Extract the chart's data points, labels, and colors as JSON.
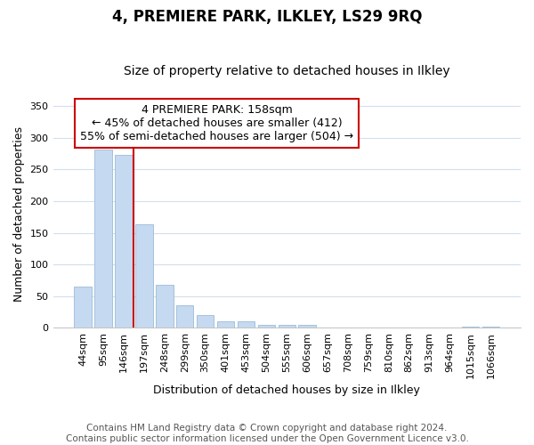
{
  "title": "4, PREMIERE PARK, ILKLEY, LS29 9RQ",
  "subtitle": "Size of property relative to detached houses in Ilkley",
  "xlabel": "Distribution of detached houses by size in Ilkley",
  "ylabel": "Number of detached properties",
  "footnote": "Contains HM Land Registry data © Crown copyright and database right 2024.\nContains public sector information licensed under the Open Government Licence v3.0.",
  "annotation_line1": "4 PREMIERE PARK: 158sqm",
  "annotation_line2": "← 45% of detached houses are smaller (412)",
  "annotation_line3": "55% of semi-detached houses are larger (504) →",
  "categories": [
    "44sqm",
    "95sqm",
    "146sqm",
    "197sqm",
    "248sqm",
    "299sqm",
    "350sqm",
    "401sqm",
    "453sqm",
    "504sqm",
    "555sqm",
    "606sqm",
    "657sqm",
    "708sqm",
    "759sqm",
    "810sqm",
    "862sqm",
    "913sqm",
    "964sqm",
    "1015sqm",
    "1066sqm"
  ],
  "values": [
    65,
    281,
    273,
    163,
    68,
    35,
    20,
    10,
    10,
    5,
    5,
    5,
    0,
    0,
    0,
    0,
    0,
    0,
    0,
    2,
    2
  ],
  "bar_color": "#c5d9f0",
  "bar_edge_color": "#9bbcd8",
  "vline_x": 2.5,
  "vline_color": "#cc0000",
  "box_color": "#cc0000",
  "ylim": [
    0,
    360
  ],
  "yticks": [
    0,
    50,
    100,
    150,
    200,
    250,
    300,
    350
  ],
  "background_color": "#ffffff",
  "plot_bg_color": "#ffffff",
  "grid_color": "#d0dff0",
  "title_fontsize": 12,
  "subtitle_fontsize": 10,
  "axis_label_fontsize": 9,
  "tick_fontsize": 8,
  "footnote_fontsize": 7.5,
  "annotation_fontsize": 9
}
